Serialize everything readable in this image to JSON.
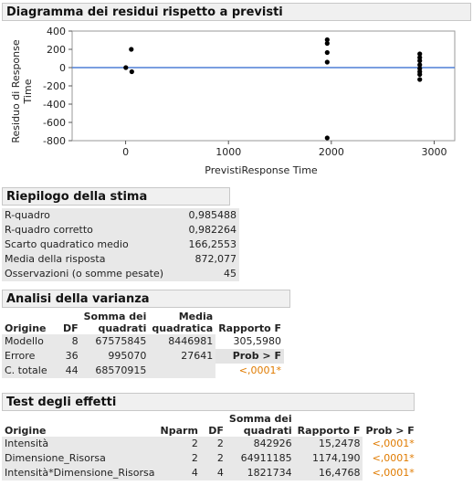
{
  "plot": {
    "header": "Diagramma dei residui rispetto a previsti",
    "ylabel_line1": "Residuo di Response",
    "ylabel_line2": "Time",
    "xlabel": "PrevistiResponse Time"
  },
  "chart_data": {
    "type": "scatter",
    "xlabel": "PrevistiResponse Time",
    "ylabel": "Residuo di Response Time",
    "xlim": [
      -520,
      3200
    ],
    "ylim": [
      -800,
      400
    ],
    "xticks": [
      0,
      1000,
      2000,
      3000
    ],
    "yticks": [
      400,
      200,
      0,
      -200,
      -400,
      -600,
      -800
    ],
    "reference_line": 0,
    "reference_line_color": "#4f7fd6",
    "points": [
      {
        "x": 2,
        "y": 0
      },
      {
        "x": 55,
        "y": 200
      },
      {
        "x": 60,
        "y": -45
      },
      {
        "x": 1960,
        "y": 305
      },
      {
        "x": 1960,
        "y": 265
      },
      {
        "x": 1960,
        "y": 165
      },
      {
        "x": 1960,
        "y": 60
      },
      {
        "x": 1960,
        "y": -770
      },
      {
        "x": 2860,
        "y": 150
      },
      {
        "x": 2860,
        "y": 110
      },
      {
        "x": 2860,
        "y": 75
      },
      {
        "x": 2860,
        "y": 30
      },
      {
        "x": 2860,
        "y": -10
      },
      {
        "x": 2860,
        "y": -45
      },
      {
        "x": 2860,
        "y": -75
      },
      {
        "x": 2860,
        "y": -130
      }
    ]
  },
  "fit": {
    "header": "Riepilogo della stima",
    "rows": [
      {
        "label": "R-quadro",
        "value": "0,985488"
      },
      {
        "label": "R-quadro corretto",
        "value": "0,982264"
      },
      {
        "label": "Scarto quadratico medio",
        "value": "166,2553"
      },
      {
        "label": "Media della risposta",
        "value": "872,077"
      },
      {
        "label": "Osservazioni (o somme pesate)",
        "value": "45"
      }
    ]
  },
  "anova": {
    "header": "Analisi della varianza",
    "columns": {
      "source": "Origine",
      "df": "DF",
      "ss_1": "Somma dei",
      "ss_2": "quadrati",
      "ms_1": "Media",
      "ms_2": "quadratica",
      "f": "Rapporto F"
    },
    "rows": [
      {
        "source": "Modello",
        "df": "8",
        "ss": "67575845",
        "ms": "8446981",
        "f": "305,5980"
      },
      {
        "source": "Errore",
        "df": "36",
        "ss": "995070",
        "ms": "27641",
        "f": "Prob > F"
      },
      {
        "source": "C. totale",
        "df": "44",
        "ss": "68570915",
        "ms": "",
        "f": "<,0001*"
      }
    ]
  },
  "effects": {
    "header": "Test degli effetti",
    "columns": {
      "source": "Origine",
      "nparm": "Nparm",
      "df": "DF",
      "ss_1": "Somma dei",
      "ss_2": "quadrati",
      "f": "Rapporto F",
      "p": "Prob > F"
    },
    "rows": [
      {
        "source": "Intensità",
        "nparm": "2",
        "df": "2",
        "ss": "842926",
        "f": "15,2478",
        "p": "<,0001*"
      },
      {
        "source": "Dimensione_Risorsa",
        "nparm": "2",
        "df": "2",
        "ss": "64911185",
        "f": "1174,190",
        "p": "<,0001*"
      },
      {
        "source": "Intensità*Dimensione_Risorsa",
        "nparm": "4",
        "df": "4",
        "ss": "1821734",
        "f": "16,4768",
        "p": "<,0001*"
      }
    ]
  }
}
